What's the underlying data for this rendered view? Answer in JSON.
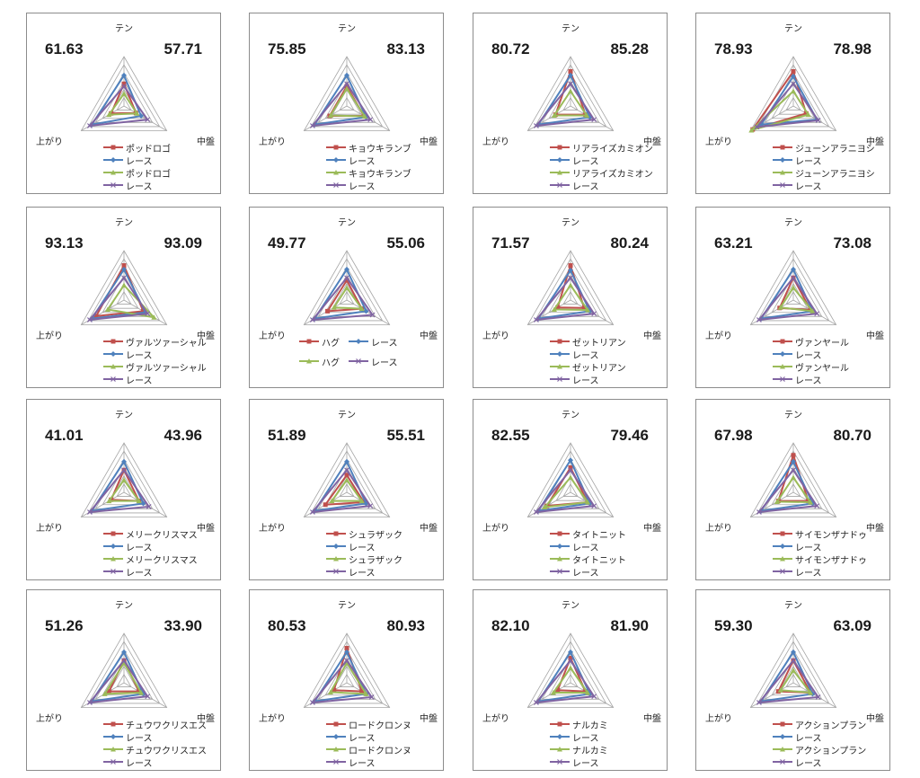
{
  "axes": [
    "テン",
    "中盤",
    "上がり"
  ],
  "series_colors": [
    "#c0504d",
    "#4f81bd",
    "#9bbb59",
    "#8064a2"
  ],
  "chart_data": [
    {
      "type": "radar",
      "score_left": "61.63",
      "score_right": "57.71",
      "legend": [
        "ポッドロゴ",
        "レース",
        "ポッドロゴ",
        "レース"
      ],
      "series": [
        {
          "name": "ポッドロゴ",
          "values": [
            0.45,
            0.28,
            0.3
          ]
        },
        {
          "name": "レース",
          "values": [
            0.62,
            0.4,
            0.75
          ]
        },
        {
          "name": "ポッドロゴ",
          "values": [
            0.25,
            0.3,
            0.35
          ]
        },
        {
          "name": "レース",
          "values": [
            0.4,
            0.55,
            0.8
          ]
        }
      ]
    },
    {
      "type": "radar",
      "score_left": "75.85",
      "score_right": "83.13",
      "legend": [
        "キョウキランブ",
        "レース",
        "キョウキランブ",
        "レース"
      ],
      "series": [
        {
          "name": "キョウキランブ",
          "values": [
            0.4,
            0.4,
            0.4
          ]
        },
        {
          "name": "レース",
          "values": [
            0.62,
            0.45,
            0.75
          ]
        },
        {
          "name": "キョウキランブ",
          "values": [
            0.35,
            0.42,
            0.38
          ]
        },
        {
          "name": "レース",
          "values": [
            0.45,
            0.55,
            0.8
          ]
        }
      ]
    },
    {
      "type": "radar",
      "score_left": "80.72",
      "score_right": "85.28",
      "legend": [
        "リアライズカミオン",
        "レース",
        "リアライズカミオン",
        "レース"
      ],
      "series": [
        {
          "name": "リアライズカミオン",
          "values": [
            0.7,
            0.35,
            0.35
          ]
        },
        {
          "name": "レース",
          "values": [
            0.62,
            0.45,
            0.75
          ]
        },
        {
          "name": "リアライズカミオン",
          "values": [
            0.3,
            0.38,
            0.38
          ]
        },
        {
          "name": "レース",
          "values": [
            0.45,
            0.55,
            0.8
          ]
        }
      ]
    },
    {
      "type": "radar",
      "score_left": "78.93",
      "score_right": "78.98",
      "legend": [
        "ジューンアラニヨシ",
        "レース",
        "ジューンアラニヨシ",
        "レース"
      ],
      "series": [
        {
          "name": "ジューンアラニヨシ",
          "values": [
            0.7,
            0.3,
            0.95
          ]
        },
        {
          "name": "レース",
          "values": [
            0.6,
            0.55,
            0.75
          ]
        },
        {
          "name": "ジューンアラニヨシ",
          "values": [
            0.3,
            0.35,
            0.98
          ]
        },
        {
          "name": "レース",
          "values": [
            0.45,
            0.58,
            0.85
          ]
        }
      ]
    },
    {
      "type": "radar",
      "score_left": "93.13",
      "score_right": "93.09",
      "legend": [
        "ヴァルツァーシャル",
        "レース",
        "ヴァルツァーシャル",
        "レース"
      ],
      "series": [
        {
          "name": "ヴァルツァーシャル",
          "values": [
            0.7,
            0.45,
            0.65
          ]
        },
        {
          "name": "レース",
          "values": [
            0.62,
            0.5,
            0.75
          ]
        },
        {
          "name": "ヴァルツァーシャル",
          "values": [
            0.3,
            0.7,
            0.38
          ]
        },
        {
          "name": "レース",
          "values": [
            0.45,
            0.55,
            0.8
          ]
        }
      ]
    },
    {
      "type": "radar",
      "score_left": "49.77",
      "score_right": "55.06",
      "legend": [
        "ハグ",
        "レース",
        "ハグ",
        "レース"
      ],
      "series": [
        {
          "name": "ハグ",
          "values": [
            0.4,
            0.35,
            0.45
          ]
        },
        {
          "name": "レース",
          "values": [
            0.62,
            0.45,
            0.75
          ]
        },
        {
          "name": "ハグ",
          "values": [
            0.25,
            0.35,
            0.3
          ]
        },
        {
          "name": "レース",
          "values": [
            0.45,
            0.6,
            0.8
          ]
        }
      ]
    },
    {
      "type": "radar",
      "score_left": "71.57",
      "score_right": "80.24",
      "legend": [
        "ゼットリアン",
        "レース",
        "ゼットリアン",
        "レース"
      ],
      "series": [
        {
          "name": "ゼットリアン",
          "values": [
            0.7,
            0.32,
            0.3
          ]
        },
        {
          "name": "レース",
          "values": [
            0.6,
            0.45,
            0.75
          ]
        },
        {
          "name": "ゼットリアン",
          "values": [
            0.3,
            0.4,
            0.38
          ]
        },
        {
          "name": "レース",
          "values": [
            0.45,
            0.55,
            0.8
          ]
        }
      ]
    },
    {
      "type": "radar",
      "score_left": "63.21",
      "score_right": "73.08",
      "legend": [
        "ヴァンヤール",
        "レース",
        "ヴァンヤール",
        "レース"
      ],
      "series": [
        {
          "name": "ヴァンヤール",
          "values": [
            0.45,
            0.4,
            0.32
          ]
        },
        {
          "name": "レース",
          "values": [
            0.62,
            0.45,
            0.75
          ]
        },
        {
          "name": "ヴァンヤール",
          "values": [
            0.25,
            0.45,
            0.3
          ]
        },
        {
          "name": "レース",
          "values": [
            0.45,
            0.55,
            0.8
          ]
        }
      ]
    },
    {
      "type": "radar",
      "score_left": "41.01",
      "score_right": "43.96",
      "legend": [
        "メリークリスマス",
        "レース",
        "メリークリスマス",
        "レース"
      ],
      "series": [
        {
          "name": "メリークリスマス",
          "values": [
            0.45,
            0.35,
            0.3
          ]
        },
        {
          "name": "レース",
          "values": [
            0.62,
            0.45,
            0.75
          ]
        },
        {
          "name": "メリークリスマス",
          "values": [
            0.25,
            0.35,
            0.35
          ]
        },
        {
          "name": "レース",
          "values": [
            0.45,
            0.58,
            0.8
          ]
        }
      ]
    },
    {
      "type": "radar",
      "score_left": "51.89",
      "score_right": "55.51",
      "legend": [
        "シュラザック",
        "レース",
        "シュラザック",
        "レース"
      ],
      "series": [
        {
          "name": "シュラザック",
          "values": [
            0.35,
            0.4,
            0.5
          ]
        },
        {
          "name": "レース",
          "values": [
            0.62,
            0.45,
            0.75
          ]
        },
        {
          "name": "シュラザック",
          "values": [
            0.25,
            0.35,
            0.35
          ]
        },
        {
          "name": "レース",
          "values": [
            0.45,
            0.55,
            0.8
          ]
        }
      ]
    },
    {
      "type": "radar",
      "score_left": "82.55",
      "score_right": "79.46",
      "legend": [
        "タイトニット",
        "レース",
        "タイトニット",
        "レース"
      ],
      "series": [
        {
          "name": "タイトニット",
          "values": [
            0.5,
            0.4,
            0.55
          ]
        },
        {
          "name": "レース",
          "values": [
            0.65,
            0.45,
            0.75
          ]
        },
        {
          "name": "タイトニット",
          "values": [
            0.3,
            0.4,
            0.6
          ]
        },
        {
          "name": "レース",
          "values": [
            0.45,
            0.55,
            0.8
          ]
        }
      ]
    },
    {
      "type": "radar",
      "score_left": "67.98",
      "score_right": "80.70",
      "legend": [
        "サイモンザナドゥ",
        "レース",
        "サイモンザナドゥ",
        "レース"
      ],
      "series": [
        {
          "name": "サイモンザナドゥ",
          "values": [
            0.75,
            0.35,
            0.35
          ]
        },
        {
          "name": "レース",
          "values": [
            0.62,
            0.45,
            0.75
          ]
        },
        {
          "name": "サイモンザナドゥ",
          "values": [
            0.3,
            0.4,
            0.38
          ]
        },
        {
          "name": "レース",
          "values": [
            0.45,
            0.55,
            0.8
          ]
        }
      ]
    },
    {
      "type": "radar",
      "score_left": "51.26",
      "score_right": "33.90",
      "legend": [
        "チュウワクリスエス",
        "レース",
        "チュウワクリスエス",
        "レース"
      ],
      "series": [
        {
          "name": "チュウワクリスエス",
          "values": [
            0.45,
            0.35,
            0.35
          ]
        },
        {
          "name": "レース",
          "values": [
            0.62,
            0.45,
            0.75
          ]
        },
        {
          "name": "チュウワクリスエス",
          "values": [
            0.4,
            0.4,
            0.45
          ]
        },
        {
          "name": "レース",
          "values": [
            0.45,
            0.55,
            0.8
          ]
        }
      ]
    },
    {
      "type": "radar",
      "score_left": "80.53",
      "score_right": "80.93",
      "legend": [
        "ロードクロンヌ",
        "レース",
        "ロードクロンヌ",
        "レース"
      ],
      "series": [
        {
          "name": "ロードクロンヌ",
          "values": [
            0.7,
            0.35,
            0.3
          ]
        },
        {
          "name": "レース",
          "values": [
            0.62,
            0.45,
            0.75
          ]
        },
        {
          "name": "ロードクロンヌ",
          "values": [
            0.4,
            0.45,
            0.38
          ]
        },
        {
          "name": "レース",
          "values": [
            0.45,
            0.58,
            0.8
          ]
        }
      ]
    },
    {
      "type": "radar",
      "score_left": "82.10",
      "score_right": "81.90",
      "legend": [
        "ナルカミ",
        "レース",
        "ナルカミ",
        "レース"
      ],
      "series": [
        {
          "name": "ナルカミ",
          "values": [
            0.5,
            0.35,
            0.3
          ]
        },
        {
          "name": "レース",
          "values": [
            0.62,
            0.45,
            0.75
          ]
        },
        {
          "name": "ナルカミ",
          "values": [
            0.3,
            0.4,
            0.4
          ]
        },
        {
          "name": "レース",
          "values": [
            0.45,
            0.55,
            0.8
          ]
        }
      ]
    },
    {
      "type": "radar",
      "score_left": "59.30",
      "score_right": "63.09",
      "legend": [
        "アクションプラン",
        "レース",
        "アクションプラン",
        "レース"
      ],
      "series": [
        {
          "name": "アクションプラン",
          "values": [
            0.45,
            0.4,
            0.35
          ]
        },
        {
          "name": "レース",
          "values": [
            0.62,
            0.45,
            0.75
          ]
        },
        {
          "name": "アクションプラン",
          "values": [
            0.25,
            0.4,
            0.3
          ]
        },
        {
          "name": "レース",
          "values": [
            0.45,
            0.58,
            0.8
          ]
        }
      ]
    }
  ]
}
